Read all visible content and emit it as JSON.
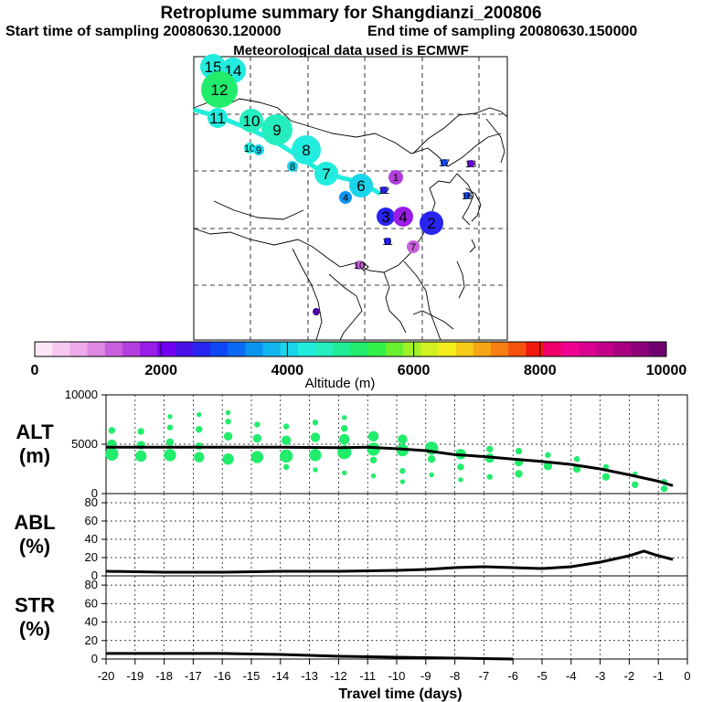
{
  "header": {
    "title": "Retroplume summary for Shangdianzi_200806",
    "start_label": "Start time of sampling 20080630.120000",
    "end_label": "End time of sampling 20080630.150000",
    "met_label": "Meteorological data used is ECMWF"
  },
  "colorbar": {
    "ticks": [
      "0",
      "2000",
      "4000",
      "6000",
      "8000",
      "10000"
    ],
    "label": "Altitude (m)",
    "colors": [
      "#fde6f6",
      "#f6c8f0",
      "#eeaaea",
      "#de88e2",
      "#c860de",
      "#b23ede",
      "#9a1ce8",
      "#7200f0",
      "#4a10e8",
      "#2824f2",
      "#1046f4",
      "#0a6af4",
      "#0a94f0",
      "#12b6ee",
      "#1ad4ea",
      "#22ecde",
      "#24eebe",
      "#22ec96",
      "#22ec6c",
      "#32f048",
      "#6af030",
      "#a2f028",
      "#d2f022",
      "#f6ee1c",
      "#f6cc18",
      "#f6a614",
      "#f67e12",
      "#f4520e",
      "#f0180c",
      "#f0006a",
      "#f00090",
      "#dc0090",
      "#c4008a",
      "#a80080",
      "#8c007a",
      "#6e0070"
    ]
  },
  "map": {
    "plume_points": [
      {
        "label": "15",
        "altitude": 4300,
        "size": 14
      },
      {
        "label": "14",
        "altitude": 4300,
        "size": 14
      },
      {
        "label": "12",
        "altitude": 5100,
        "size": 20
      },
      {
        "label": "11",
        "altitude": 4200,
        "size": 11
      },
      {
        "label": "10",
        "altitude": 4500,
        "size": 13
      },
      {
        "label": "10",
        "altitude": 4200,
        "size": 6
      },
      {
        "label": "9",
        "altitude": 4600,
        "size": 17
      },
      {
        "label": "9",
        "altitude": 4100,
        "size": 6
      },
      {
        "label": "8",
        "altitude": 4400,
        "size": 16
      },
      {
        "label": "8",
        "altitude": 4100,
        "size": 6
      },
      {
        "label": "7",
        "altitude": 4300,
        "size": 13
      },
      {
        "label": "6",
        "altitude": 3900,
        "size": 13
      },
      {
        "label": "4",
        "altitude": 3600,
        "size": 7
      },
      {
        "label": "3",
        "altitude": 2600,
        "size": 10
      },
      {
        "label": "4",
        "altitude": 1900,
        "size": 11
      },
      {
        "label": "2",
        "altitude": 2700,
        "size": 13
      },
      {
        "label": "7",
        "altitude": 1300,
        "size": 7
      },
      {
        "label": "1",
        "altitude": 1500,
        "size": 8
      },
      {
        "label": "17",
        "altitude": 3000,
        "size": 4
      },
      {
        "label": "13",
        "altitude": 2000,
        "size": 4
      },
      {
        "label": "11",
        "altitude": 2500,
        "size": 4
      },
      {
        "label": "10",
        "altitude": 1200,
        "size": 5
      },
      {
        "label": "9",
        "altitude": 2200,
        "size": 4
      },
      {
        "label": "12",
        "altitude": 2500,
        "size": 4
      },
      {
        "label": "16",
        "altitude": 3000,
        "size": 4
      }
    ]
  },
  "chart_data": [
    {
      "type": "scatter",
      "panel": "ALT",
      "ylabel_line1": "ALT",
      "ylabel_line2": "(m)",
      "ylim": [
        0,
        10000
      ],
      "yticks": [
        "0",
        "5000",
        "10000"
      ],
      "xlim": [
        -20,
        0
      ],
      "mean_line": {
        "x": [
          -20,
          -18,
          -16,
          -14,
          -12,
          -11,
          -10,
          -9,
          -8,
          -7,
          -6,
          -5,
          -4,
          -3,
          -2,
          -1,
          -0.5
        ],
        "y": [
          4700,
          4700,
          4700,
          4700,
          4650,
          4700,
          4550,
          4350,
          3950,
          3750,
          3500,
          3250,
          2950,
          2500,
          1900,
          1250,
          800
        ]
      },
      "points": [
        {
          "x": -19.8,
          "y": 4000,
          "size": 12
        },
        {
          "x": -19.8,
          "y": 5000,
          "size": 8
        },
        {
          "x": -19.8,
          "y": 6400,
          "size": 5
        },
        {
          "x": -18.8,
          "y": 3800,
          "size": 10
        },
        {
          "x": -18.8,
          "y": 4900,
          "size": 7
        },
        {
          "x": -18.8,
          "y": 6300,
          "size": 5
        },
        {
          "x": -17.8,
          "y": 3900,
          "size": 11
        },
        {
          "x": -17.8,
          "y": 5200,
          "size": 6
        },
        {
          "x": -17.8,
          "y": 6700,
          "size": 4
        },
        {
          "x": -17.8,
          "y": 7800,
          "size": 3
        },
        {
          "x": -16.8,
          "y": 3700,
          "size": 9
        },
        {
          "x": -16.8,
          "y": 4800,
          "size": 6
        },
        {
          "x": -16.8,
          "y": 6500,
          "size": 5
        },
        {
          "x": -16.8,
          "y": 8000,
          "size": 3
        },
        {
          "x": -15.8,
          "y": 3500,
          "size": 10
        },
        {
          "x": -15.8,
          "y": 5800,
          "size": 7
        },
        {
          "x": -15.8,
          "y": 7300,
          "size": 4
        },
        {
          "x": -15.8,
          "y": 8200,
          "size": 3
        },
        {
          "x": -14.8,
          "y": 3700,
          "size": 11
        },
        {
          "x": -14.8,
          "y": 5600,
          "size": 7
        },
        {
          "x": -14.8,
          "y": 7000,
          "size": 4
        },
        {
          "x": -13.8,
          "y": 3800,
          "size": 12
        },
        {
          "x": -13.8,
          "y": 5400,
          "size": 8
        },
        {
          "x": -13.8,
          "y": 6800,
          "size": 4
        },
        {
          "x": -13.8,
          "y": 2700,
          "size": 4
        },
        {
          "x": -12.8,
          "y": 3900,
          "size": 11
        },
        {
          "x": -12.8,
          "y": 5700,
          "size": 8
        },
        {
          "x": -12.8,
          "y": 7200,
          "size": 4
        },
        {
          "x": -12.8,
          "y": 2400,
          "size": 3
        },
        {
          "x": -11.8,
          "y": 4200,
          "size": 13
        },
        {
          "x": -11.8,
          "y": 5500,
          "size": 9
        },
        {
          "x": -11.8,
          "y": 6600,
          "size": 5
        },
        {
          "x": -11.8,
          "y": 7700,
          "size": 3
        },
        {
          "x": -11.8,
          "y": 2100,
          "size": 3
        },
        {
          "x": -10.8,
          "y": 4500,
          "size": 12
        },
        {
          "x": -10.8,
          "y": 5800,
          "size": 9
        },
        {
          "x": -10.8,
          "y": 3400,
          "size": 5
        },
        {
          "x": -10.8,
          "y": 1800,
          "size": 3
        },
        {
          "x": -9.8,
          "y": 4400,
          "size": 11
        },
        {
          "x": -9.8,
          "y": 5500,
          "size": 8
        },
        {
          "x": -9.8,
          "y": 2300,
          "size": 4
        },
        {
          "x": -9.8,
          "y": 1200,
          "size": 3
        },
        {
          "x": -8.8,
          "y": 4600,
          "size": 12
        },
        {
          "x": -8.8,
          "y": 3500,
          "size": 6
        },
        {
          "x": -8.8,
          "y": 1900,
          "size": 3
        },
        {
          "x": -7.8,
          "y": 4000,
          "size": 9
        },
        {
          "x": -7.8,
          "y": 2700,
          "size": 5
        },
        {
          "x": -7.8,
          "y": 1400,
          "size": 3
        },
        {
          "x": -6.8,
          "y": 3600,
          "size": 8
        },
        {
          "x": -6.8,
          "y": 4500,
          "size": 5
        },
        {
          "x": -6.8,
          "y": 1700,
          "size": 4
        },
        {
          "x": -5.8,
          "y": 3200,
          "size": 7
        },
        {
          "x": -5.8,
          "y": 4300,
          "size": 5
        },
        {
          "x": -5.8,
          "y": 2000,
          "size": 6
        },
        {
          "x": -4.8,
          "y": 2800,
          "size": 7
        },
        {
          "x": -4.8,
          "y": 3900,
          "size": 4
        },
        {
          "x": -3.8,
          "y": 2500,
          "size": 6
        },
        {
          "x": -3.8,
          "y": 3500,
          "size": 4
        },
        {
          "x": -2.8,
          "y": 1700,
          "size": 6
        },
        {
          "x": -2.8,
          "y": 2700,
          "size": 4
        },
        {
          "x": -1.8,
          "y": 900,
          "size": 5
        },
        {
          "x": -1.8,
          "y": 2000,
          "size": 3
        },
        {
          "x": -0.8,
          "y": 500,
          "size": 5
        },
        {
          "x": -0.8,
          "y": 1200,
          "size": 4
        }
      ]
    },
    {
      "type": "line",
      "panel": "ABL",
      "ylabel_line1": "ABL",
      "ylabel_line2": "(%)",
      "ylim": [
        0,
        90
      ],
      "yticks": [
        "0",
        "20",
        "40",
        "60",
        "80"
      ],
      "x": [
        -20,
        -18,
        -16,
        -14,
        -12,
        -10,
        -9,
        -8,
        -7,
        -6,
        -5,
        -4,
        -3,
        -2,
        -1.5,
        -1,
        -0.5
      ],
      "y": [
        5,
        4,
        4,
        5,
        5,
        6,
        7,
        9,
        10,
        9,
        8,
        10,
        15,
        22,
        27,
        22,
        18
      ]
    },
    {
      "type": "line",
      "panel": "STR",
      "ylabel_line1": "STR",
      "ylabel_line2": "(%)",
      "ylim": [
        0,
        90
      ],
      "yticks": [
        "0",
        "20",
        "40",
        "60",
        "80"
      ],
      "x": [
        -20,
        -18,
        -16,
        -14,
        -12,
        -10,
        -8,
        -7,
        -6
      ],
      "y": [
        6,
        6,
        6,
        5,
        3,
        2,
        1,
        0.5,
        0
      ]
    },
    {
      "type": "axis",
      "xlabel": "Travel time (days)",
      "xticks": [
        "-20",
        "-19",
        "-18",
        "-17",
        "-16",
        "-15",
        "-14",
        "-13",
        "-12",
        "-11",
        "-10",
        "-9",
        "-8",
        "-7",
        "-6",
        "-5",
        "-4",
        "-3",
        "-2",
        "-1",
        "0"
      ]
    }
  ]
}
